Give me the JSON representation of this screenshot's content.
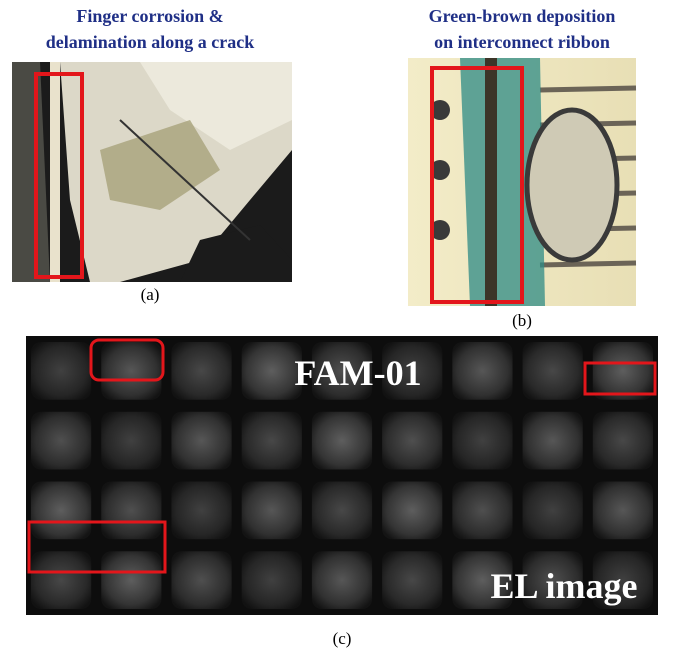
{
  "panels": [
    {
      "title": [
        "Finger corrosion &",
        "delamination along a crack"
      ],
      "label": "(a)"
    },
    {
      "title": [
        "Green-brown deposition",
        "on interconnect ribbon"
      ],
      "label": "(b)"
    },
    {
      "label": "(c)",
      "annotations": [
        "FAM-01",
        "EL image"
      ]
    }
  ]
}
